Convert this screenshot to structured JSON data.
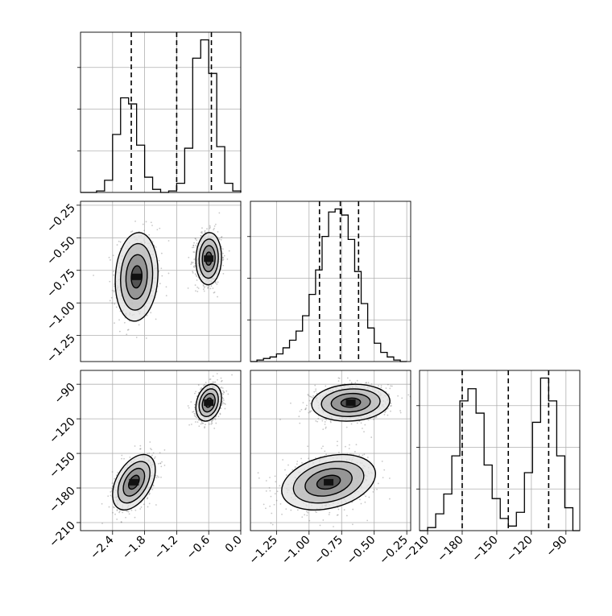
{
  "chart_data": {
    "type": "corner",
    "title": "",
    "parameters": [
      {
        "label": "",
        "range": [
          -3.0,
          0.0
        ],
        "ticks": [
          -2.4,
          -1.8,
          -1.2,
          -0.6,
          0.0
        ],
        "tick_labels": [
          "−2.4",
          "−1.8",
          "−1.2",
          "−0.6",
          "0.0"
        ]
      },
      {
        "label": "",
        "range": [
          -1.45,
          -0.22
        ],
        "ticks": [
          -1.25,
          -1.0,
          -0.75,
          -0.5,
          -0.25
        ],
        "tick_labels": [
          "−1.25",
          "−1.00",
          "−0.75",
          "−0.50",
          "−0.25"
        ]
      },
      {
        "label": "",
        "range": [
          -217,
          -78
        ],
        "ticks": [
          -210,
          -180,
          -150,
          -120,
          -90
        ],
        "tick_labels": [
          "−210",
          "−180",
          "−150",
          "−120",
          "−90"
        ]
      }
    ],
    "histograms": [
      {
        "param": 0,
        "bin_edges": [
          -3.0,
          -2.85,
          -2.7,
          -2.55,
          -2.4,
          -2.25,
          -2.1,
          -1.95,
          -1.8,
          -1.65,
          -1.5,
          -1.35,
          -1.2,
          -1.05,
          -0.9,
          -0.75,
          -0.6,
          -0.45,
          -0.3,
          -0.15,
          0.0
        ],
        "counts": [
          0.0,
          0.0,
          0.01,
          0.08,
          0.38,
          0.62,
          0.58,
          0.31,
          0.1,
          0.02,
          0.0,
          0.01,
          0.06,
          0.29,
          0.88,
          1.0,
          0.78,
          0.3,
          0.06,
          0.01
        ],
        "quantiles": [
          -2.05,
          -1.2,
          -0.55
        ]
      },
      {
        "param": 1,
        "bin_edges": [
          -1.45,
          -1.4,
          -1.35,
          -1.3,
          -1.25,
          -1.2,
          -1.15,
          -1.1,
          -1.05,
          -1.0,
          -0.95,
          -0.9,
          -0.85,
          -0.8,
          -0.75,
          -0.7,
          -0.65,
          -0.6,
          -0.55,
          -0.5,
          -0.45,
          -0.4,
          -0.35,
          -0.3,
          -0.25
        ],
        "counts": [
          0.0,
          0.01,
          0.02,
          0.03,
          0.05,
          0.09,
          0.14,
          0.2,
          0.3,
          0.44,
          0.6,
          0.82,
          0.98,
          1.0,
          0.96,
          0.8,
          0.59,
          0.38,
          0.22,
          0.12,
          0.06,
          0.03,
          0.01,
          0.0
        ],
        "quantiles": [
          -0.92,
          -0.76,
          -0.62
        ]
      },
      {
        "param": 2,
        "bin_edges": [
          -217,
          -210,
          -203,
          -196,
          -189,
          -182,
          -175,
          -168,
          -161,
          -154,
          -147,
          -140,
          -133,
          -126,
          -119,
          -112,
          -105,
          -98,
          -91,
          -84,
          -78
        ],
        "counts": [
          0.0,
          0.02,
          0.11,
          0.24,
          0.49,
          0.85,
          0.93,
          0.77,
          0.43,
          0.21,
          0.08,
          0.03,
          0.12,
          0.38,
          0.71,
          1.0,
          0.85,
          0.49,
          0.15,
          0.0
        ],
        "quantiles": [
          -180,
          -140,
          -105
        ]
      }
    ],
    "scatter_pairs": [
      {
        "x_param": 0,
        "y_param": 1,
        "clusters": [
          {
            "mean": [
              -1.95,
              -0.8
            ],
            "sd": [
              0.2,
              0.17
            ],
            "rho": 0.1,
            "weight": 0.45
          },
          {
            "mean": [
              -0.6,
              -0.66
            ],
            "sd": [
              0.12,
              0.1
            ],
            "rho": 0.05,
            "weight": 0.55
          }
        ]
      },
      {
        "x_param": 0,
        "y_param": 2,
        "clusters": [
          {
            "mean": [
              -2.0,
              -175
            ],
            "sd": [
              0.2,
              12
            ],
            "rho": 0.45,
            "weight": 0.45
          },
          {
            "mean": [
              -0.6,
              -106
            ],
            "sd": [
              0.12,
              8
            ],
            "rho": 0.25,
            "weight": 0.55
          }
        ]
      },
      {
        "x_param": 1,
        "y_param": 2,
        "clusters": [
          {
            "mean": [
              -0.85,
              -175
            ],
            "sd": [
              0.18,
              12
            ],
            "rho": 0.3,
            "weight": 0.45
          },
          {
            "mean": [
              -0.68,
              -106
            ],
            "sd": [
              0.15,
              8
            ],
            "rho": 0.1,
            "weight": 0.55
          }
        ]
      }
    ],
    "contour_levels_sigma": [
      0.5,
      1.0,
      1.5,
      2.0
    ],
    "quantiles": [
      0.16,
      0.5,
      0.84
    ],
    "grid": true,
    "legend": "none"
  }
}
